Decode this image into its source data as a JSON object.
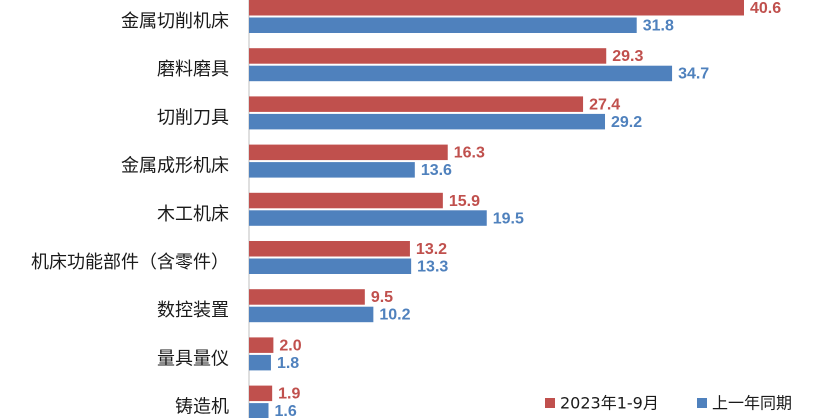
{
  "chart_data": {
    "type": "bar",
    "orientation": "horizontal",
    "categories": [
      "金属切削机床",
      "磨料磨具",
      "切削刀具",
      "金属成形机床",
      "木工机床",
      "机床功能部件（含零件）",
      "数控装置",
      "量具量仪",
      "铸造机"
    ],
    "series": [
      {
        "name": "2023年1-9月",
        "color": "#c0504d",
        "values": [
          40.6,
          29.3,
          27.4,
          16.3,
          15.9,
          13.2,
          9.5,
          2.0,
          1.9
        ]
      },
      {
        "name": "上一年同期",
        "color": "#4f81bd",
        "values": [
          31.8,
          34.7,
          29.2,
          13.6,
          19.5,
          13.3,
          10.2,
          1.8,
          1.6
        ]
      }
    ],
    "xlim": [
      0,
      40.6
    ],
    "grid": false,
    "legend_position": "bottom-right",
    "value_label_decimals": 1
  }
}
